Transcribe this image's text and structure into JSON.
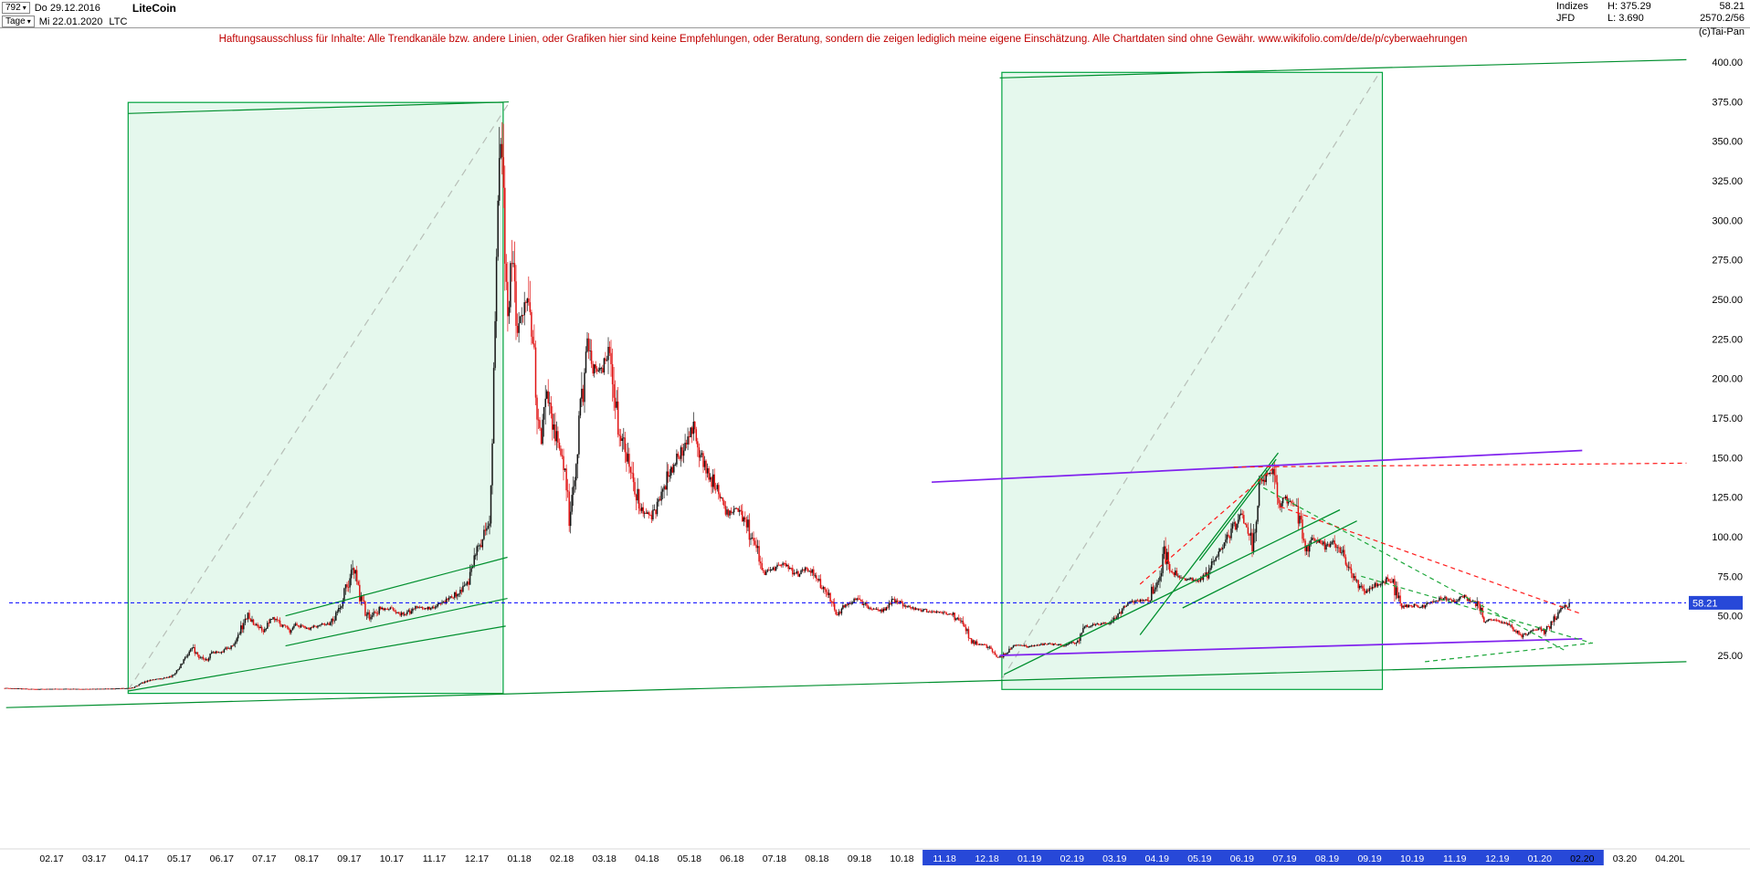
{
  "icons": {
    "chevron_down": "▾"
  },
  "header": {
    "bars_count": "792",
    "start_date": "Do 29.12.2016",
    "period": "Tage",
    "end_date": "Mi 22.01.2020",
    "symbol": "LTC",
    "title": "LiteCoin",
    "right": {
      "group": "Indizes",
      "provider": "JFD",
      "high": "H: 375.29",
      "low": "L: 3.690",
      "last": "58.21",
      "extra": "2570.2/56",
      "copyright": "(c)Tai-Pan"
    }
  },
  "disclaimer": "Haftungsausschluss für Inhalte: Alle Trendkanäle bzw. andere Linien, oder Grafiken hier sind keine Empfehlungen, oder Beratung, sondern die zeigen lediglich meine eigene Einschätzung. Alle Chartdaten sind ohne Gewähr.  www.wikifolio.com/de/de/p/cyberwaehrungen",
  "chart_data": {
    "type": "candlestick",
    "instrument": "LiteCoin (LTC)",
    "timeframe": "daily",
    "visible_range": {
      "from": "29.12.2016",
      "to": "22.01.2020"
    },
    "last_price": 58.21,
    "high": 375.29,
    "low": 3.69,
    "t_start": -0.1,
    "t_end": 36.72,
    "y_axis": {
      "ticks": [
        400,
        375,
        350,
        325,
        300,
        275,
        250,
        225,
        200,
        175,
        150,
        125,
        100,
        75,
        50,
        25
      ],
      "format": "0.00"
    },
    "x_axis": {
      "labels": [
        "02.17",
        "03.17",
        "04.17",
        "05.17",
        "06.17",
        "07.17",
        "08.17",
        "09.17",
        "10.17",
        "11.17",
        "12.17",
        "01.18",
        "02.18",
        "03.18",
        "04.18",
        "05.18",
        "06.18",
        "07.18",
        "08.18",
        "09.18",
        "10.18",
        "11.18",
        "12.18",
        "01.19",
        "02.19",
        "03.19",
        "04.19",
        "05.19",
        "06.19",
        "07.19",
        "08.19",
        "09.19",
        "10.19",
        "11.19",
        "12.19",
        "01.20",
        "02.20",
        "03.20",
        "04.20",
        "L"
      ],
      "highlight_from": "11.18",
      "highlight_to": "01.20"
    },
    "price_path": [
      [
        -0.1,
        4.35
      ],
      [
        0.3,
        4.0
      ],
      [
        0.6,
        3.78
      ],
      [
        1.2,
        3.9
      ],
      [
        1.8,
        3.8
      ],
      [
        2.4,
        4.0
      ],
      [
        2.9,
        4.4
      ],
      [
        3.1,
        7.2
      ],
      [
        3.3,
        9.5
      ],
      [
        3.55,
        10.3
      ],
      [
        3.8,
        11.5
      ],
      [
        3.97,
        15.5
      ],
      [
        4.3,
        30.0
      ],
      [
        4.45,
        25.0
      ],
      [
        4.6,
        22.0
      ],
      [
        4.8,
        26.5
      ],
      [
        5.0,
        27.5
      ],
      [
        5.3,
        32.0
      ],
      [
        5.6,
        50.0
      ],
      [
        5.75,
        45.0
      ],
      [
        5.95,
        40.5
      ],
      [
        6.2,
        49.0
      ],
      [
        6.4,
        44.0
      ],
      [
        6.6,
        41.0
      ],
      [
        6.8,
        44.5
      ],
      [
        7.0,
        42.0
      ],
      [
        7.3,
        44.0
      ],
      [
        7.6,
        45.5
      ],
      [
        7.85,
        62.0
      ],
      [
        8.02,
        74.0
      ],
      [
        8.07,
        85.0
      ],
      [
        8.25,
        62.0
      ],
      [
        8.48,
        47.5
      ],
      [
        8.7,
        55.0
      ],
      [
        9.0,
        54.0
      ],
      [
        9.3,
        50.5
      ],
      [
        9.6,
        56.0
      ],
      [
        9.9,
        55.0
      ],
      [
        10.2,
        59.0
      ],
      [
        10.5,
        63.0
      ],
      [
        10.8,
        72.0
      ],
      [
        10.97,
        88.0
      ],
      [
        11.15,
        100.0
      ],
      [
        11.3,
        110.0
      ],
      [
        11.37,
        160.0
      ],
      [
        11.42,
        230.0
      ],
      [
        11.5,
        310.0
      ],
      [
        11.58,
        360.0
      ],
      [
        11.63,
        330.0
      ],
      [
        11.68,
        250.0
      ],
      [
        11.73,
        230.0
      ],
      [
        11.8,
        283.0
      ],
      [
        11.88,
        262.0
      ],
      [
        11.97,
        232.0
      ],
      [
        12.1,
        242.0
      ],
      [
        12.2,
        252.0
      ],
      [
        12.35,
        205.0
      ],
      [
        12.5,
        162.0
      ],
      [
        12.65,
        188.0
      ],
      [
        12.85,
        168.0
      ],
      [
        13.05,
        145.0
      ],
      [
        13.18,
        110.0
      ],
      [
        13.35,
        152.0
      ],
      [
        13.6,
        222.0
      ],
      [
        13.75,
        208.0
      ],
      [
        13.95,
        206.0
      ],
      [
        14.1,
        215.0
      ],
      [
        14.35,
        168.0
      ],
      [
        14.6,
        144.0
      ],
      [
        14.85,
        118.0
      ],
      [
        15.05,
        112.0
      ],
      [
        15.3,
        122.0
      ],
      [
        15.55,
        142.0
      ],
      [
        15.8,
        152.0
      ],
      [
        16.05,
        170.0
      ],
      [
        16.3,
        148.0
      ],
      [
        16.6,
        132.0
      ],
      [
        16.9,
        115.0
      ],
      [
        17.2,
        118.0
      ],
      [
        17.5,
        96.0
      ],
      [
        17.75,
        77.0
      ],
      [
        17.95,
        80.0
      ],
      [
        18.2,
        83.0
      ],
      [
        18.5,
        76.0
      ],
      [
        18.8,
        80.0
      ],
      [
        19.1,
        70.0
      ],
      [
        19.3,
        60.0
      ],
      [
        19.45,
        50.5
      ],
      [
        19.7,
        57.0
      ],
      [
        19.95,
        61.0
      ],
      [
        20.2,
        55.0
      ],
      [
        20.5,
        53.0
      ],
      [
        20.8,
        60.0
      ],
      [
        21.1,
        56.0
      ],
      [
        21.4,
        54.0
      ],
      [
        21.7,
        52.5
      ],
      [
        21.95,
        52.0
      ],
      [
        22.2,
        51.0
      ],
      [
        22.45,
        44.0
      ],
      [
        22.6,
        35.0
      ],
      [
        22.8,
        31.5
      ],
      [
        22.95,
        32.0
      ],
      [
        23.1,
        29.0
      ],
      [
        23.22,
        23.8
      ],
      [
        23.4,
        24.5
      ],
      [
        23.6,
        30.5
      ],
      [
        23.8,
        31.5
      ],
      [
        23.95,
        30.5
      ],
      [
        24.2,
        31.5
      ],
      [
        24.5,
        32.5
      ],
      [
        24.8,
        31.0
      ],
      [
        25.1,
        33.5
      ],
      [
        25.3,
        43.0
      ],
      [
        25.6,
        45.0
      ],
      [
        25.9,
        45.5
      ],
      [
        26.2,
        56.0
      ],
      [
        26.5,
        59.5
      ],
      [
        26.8,
        60.5
      ],
      [
        27.08,
        75.0
      ],
      [
        27.15,
        92.0
      ],
      [
        27.3,
        79.0
      ],
      [
        27.6,
        74.0
      ],
      [
        27.9,
        72.5
      ],
      [
        28.1,
        74.0
      ],
      [
        28.4,
        89.0
      ],
      [
        28.6,
        95.0
      ],
      [
        28.75,
        103.0
      ],
      [
        28.95,
        113.0
      ],
      [
        29.1,
        108.0
      ],
      [
        29.25,
        93.0
      ],
      [
        29.4,
        133.0
      ],
      [
        29.6,
        139.5
      ],
      [
        29.72,
        141.0
      ],
      [
        29.85,
        120.0
      ],
      [
        29.97,
        127.0
      ],
      [
        30.1,
        122.0
      ],
      [
        30.3,
        121.0
      ],
      [
        30.5,
        89.0
      ],
      [
        30.65,
        99.0
      ],
      [
        30.8,
        97.0
      ],
      [
        30.95,
        94.0
      ],
      [
        31.15,
        98.0
      ],
      [
        31.4,
        86.0
      ],
      [
        31.6,
        75.0
      ],
      [
        31.9,
        64.5
      ],
      [
        32.2,
        70.0
      ],
      [
        32.5,
        74.0
      ],
      [
        32.75,
        55.0
      ],
      [
        32.95,
        56.5
      ],
      [
        33.2,
        56.0
      ],
      [
        33.5,
        58.5
      ],
      [
        33.8,
        61.5
      ],
      [
        33.95,
        58.5
      ],
      [
        34.2,
        62.5
      ],
      [
        34.5,
        59.0
      ],
      [
        34.7,
        46.5
      ],
      [
        34.95,
        47.5
      ],
      [
        35.2,
        44.5
      ],
      [
        35.45,
        40.0
      ],
      [
        35.58,
        37.0
      ],
      [
        35.8,
        40.5
      ],
      [
        35.97,
        41.5
      ],
      [
        36.1,
        40.0
      ],
      [
        36.25,
        44.0
      ],
      [
        36.4,
        50.5
      ],
      [
        36.55,
        56.5
      ],
      [
        36.65,
        54.5
      ],
      [
        36.72,
        58.21
      ]
    ],
    "overlays": {
      "boxes": [
        {
          "name": "trend-box-2017",
          "t1": 2.8,
          "t2": 11.62,
          "p1": 1.0,
          "p2": 374.5
        },
        {
          "name": "trend-box-2019",
          "t1": 23.35,
          "t2": 32.3,
          "p1": 3.5,
          "p2": 393.5
        }
      ],
      "lines": [
        {
          "name": "measure-diagonal-2017",
          "t1": 2.8,
          "p1": 3,
          "t2": 11.75,
          "p2": 374,
          "color": "#b7beb7",
          "dash": "8 6",
          "w": 1.2,
          "behind": true
        },
        {
          "name": "measure-diagonal-2019",
          "t1": 23.35,
          "p1": 10,
          "t2": 32.2,
          "p2": 392,
          "color": "#b7beb7",
          "dash": "8 6",
          "w": 1.2,
          "behind": true
        },
        {
          "name": "support-line-long",
          "t1": -0.07,
          "p1": -8,
          "t2": 39.45,
          "p2": 21,
          "color": "#008f2e",
          "w": 1.2
        },
        {
          "name": "resistance-line-long",
          "t1": 23.3,
          "p1": 390,
          "t2": 39.45,
          "p2": 401.5,
          "color": "#008f2e",
          "w": 1.2
        },
        {
          "name": "box1-top-line",
          "t1": 2.8,
          "p1": 367.5,
          "t2": 11.75,
          "p2": 374.8,
          "color": "#008f2e",
          "w": 1.2
        },
        {
          "name": "channel-2017-support",
          "t1": 2.8,
          "p1": 2.5,
          "t2": 11.68,
          "p2": 43.5,
          "color": "#008f2e",
          "w": 1.2
        },
        {
          "name": "channel-2017-upper",
          "t1": 6.5,
          "p1": 50,
          "t2": 11.72,
          "p2": 87,
          "color": "#008f2e",
          "w": 1.2
        },
        {
          "name": "channel-2017-lower",
          "t1": 6.5,
          "p1": 31,
          "t2": 11.72,
          "p2": 61,
          "color": "#008f2e",
          "w": 1.2
        },
        {
          "name": "trend-2019-support",
          "t1": 23.4,
          "p1": 13,
          "t2": 31.3,
          "p2": 117,
          "color": "#008f2e",
          "w": 1.3
        },
        {
          "name": "trend-2019-steep",
          "t1": 26.6,
          "p1": 38,
          "t2": 29.85,
          "p2": 153,
          "color": "#008f2e",
          "w": 1.3
        },
        {
          "name": "trend-2019-mid",
          "t1": 27.6,
          "p1": 55,
          "t2": 31.7,
          "p2": 110,
          "color": "#008f2e",
          "w": 1.3
        },
        {
          "name": "peak-channel-line",
          "t1": 28.0,
          "p1": 85,
          "t2": 29.8,
          "p2": 149,
          "color": "#008f2e",
          "w": 1.3
        },
        {
          "name": "purple-resistance",
          "t1": 21.7,
          "p1": 134.5,
          "t2": 37.0,
          "p2": 154.5,
          "color": "#8022ee",
          "w": 1.7
        },
        {
          "name": "purple-support",
          "t1": 23.3,
          "p1": 25,
          "t2": 37.0,
          "p2": 35.5,
          "color": "#8022ee",
          "w": 1.7
        },
        {
          "name": "red-resistance-horizontal",
          "t1": 28.8,
          "p1": 144,
          "t2": 39.45,
          "p2": 146.5,
          "color": "#ff1a1a",
          "dash": "5 4",
          "w": 1.2
        },
        {
          "name": "red-decline",
          "t1": 29.9,
          "p1": 119,
          "t2": 37.0,
          "p2": 51,
          "color": "#ff1a1a",
          "dash": "5 4",
          "w": 1.2
        },
        {
          "name": "red-rising-wedge",
          "t1": 26.6,
          "p1": 70,
          "t2": 29.8,
          "p2": 145,
          "color": "#ff1a1a",
          "dash": "5 4",
          "w": 1.2
        },
        {
          "name": "green-dash-decline-1",
          "t1": 29.5,
          "p1": 131,
          "t2": 36.6,
          "p2": 28,
          "color": "#1fa83c",
          "dash": "5 4",
          "w": 1.2
        },
        {
          "name": "green-dash-decline-2",
          "t1": 31.8,
          "p1": 75,
          "t2": 37.2,
          "p2": 33,
          "color": "#1fa83c",
          "dash": "5 4",
          "w": 1.2
        },
        {
          "name": "green-dash-rising",
          "t1": 33.3,
          "p1": 21,
          "t2": 37.3,
          "p2": 33,
          "color": "#1fa83c",
          "dash": "5 4",
          "w": 1.2
        }
      ]
    },
    "colors": {
      "up": "#141414",
      "down": "#e01212",
      "box_fill": "rgba(0,190,80,0.10)",
      "box_stroke": "#00a23e",
      "last_line": "#0000ff",
      "accent": "#2748d8"
    }
  }
}
